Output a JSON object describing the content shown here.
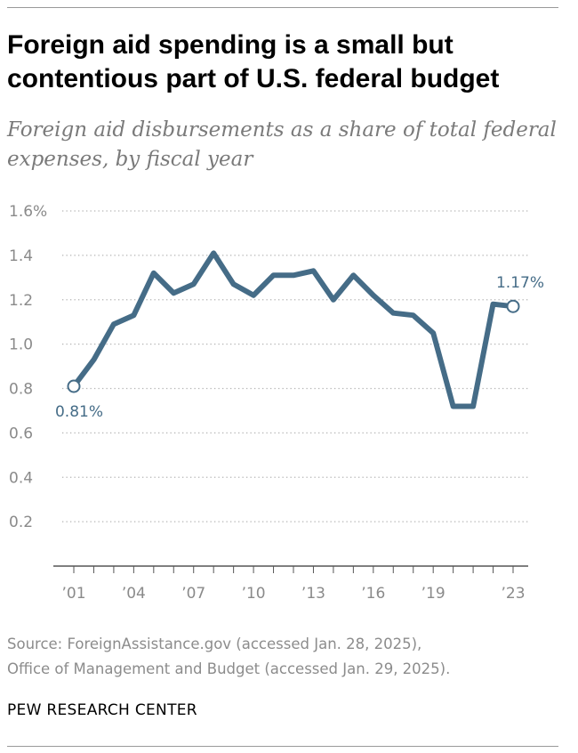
{
  "title": "Foreign aid spending is a small but contentious part of U.S. federal budget",
  "subtitle": "Foreign aid disbursements as a share of total federal expenses, by fiscal year",
  "source_lines": [
    "Source: ForeignAssistance.gov (accessed Jan. 28, 2025),",
    "Office of Management and Budget (accessed Jan. 29, 2025)."
  ],
  "brand": "PEW RESEARCH CENTER",
  "colors": {
    "line": "#456c87",
    "grid": "#b3b3b3",
    "tick_text": "#8a8a8a",
    "label_text": "#456c87"
  },
  "chart_data": {
    "type": "line",
    "title": "Foreign aid spending is a small but contentious part of U.S. federal budget",
    "subtitle": "Foreign aid disbursements as a share of total federal expenses, by fiscal year",
    "xlabel": "",
    "ylabel": "",
    "ylim": [
      0,
      1.6
    ],
    "xlim": [
      2001,
      2023
    ],
    "grid": "horizontal dotted",
    "y_ticks": [
      {
        "value": 1.6,
        "label": "1.6%"
      },
      {
        "value": 1.4,
        "label": "1.4"
      },
      {
        "value": 1.2,
        "label": "1.2"
      },
      {
        "value": 1.0,
        "label": "1.0"
      },
      {
        "value": 0.8,
        "label": "0.8"
      },
      {
        "value": 0.6,
        "label": "0.6"
      },
      {
        "value": 0.4,
        "label": "0.4"
      },
      {
        "value": 0.2,
        "label": "0.2"
      }
    ],
    "x_ticks": [
      {
        "value": 2001,
        "label": "’01"
      },
      {
        "value": 2004,
        "label": "’04"
      },
      {
        "value": 2007,
        "label": "’07"
      },
      {
        "value": 2010,
        "label": "’10"
      },
      {
        "value": 2013,
        "label": "’13"
      },
      {
        "value": 2016,
        "label": "’16"
      },
      {
        "value": 2019,
        "label": "’19"
      },
      {
        "value": 2023,
        "label": "’23"
      }
    ],
    "series": [
      {
        "x": [
          2001,
          2002,
          2003,
          2004,
          2005,
          2006,
          2007,
          2008,
          2009,
          2010,
          2011,
          2012,
          2013,
          2014,
          2015,
          2016,
          2017,
          2018,
          2019,
          2020,
          2021,
          2022,
          2023
        ],
        "values": [
          0.81,
          0.93,
          1.09,
          1.13,
          1.32,
          1.23,
          1.27,
          1.41,
          1.27,
          1.22,
          1.31,
          1.31,
          1.33,
          1.2,
          1.31,
          1.22,
          1.14,
          1.13,
          1.05,
          0.72,
          0.72,
          1.18,
          1.17
        ]
      }
    ],
    "annotations": [
      {
        "x": 2001,
        "y": 0.81,
        "label": "0.81%",
        "position": "below"
      },
      {
        "x": 2023,
        "y": 1.17,
        "label": "1.17%",
        "position": "above"
      }
    ]
  }
}
